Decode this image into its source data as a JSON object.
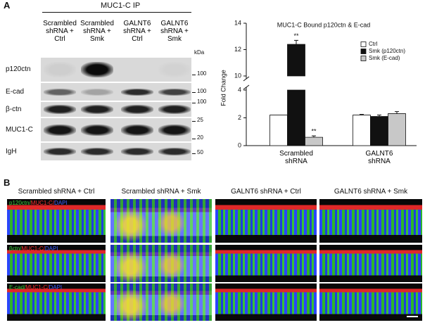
{
  "panel_a": {
    "label": "A",
    "ip_title": "MUC1-C IP",
    "lanes": [
      "Scrambled shRNA + Ctrl",
      "Scrambled shRNA + Smk",
      "GALNT6 shRNA + Ctrl",
      "GALNT6 shRNA + Smk"
    ],
    "kda_unit": "kDa",
    "blots": [
      {
        "name": "p120ctn",
        "markers": [
          100
        ]
      },
      {
        "name": "E-cad",
        "markers": [
          100
        ]
      },
      {
        "name": "β-ctn",
        "markers": [
          100
        ]
      },
      {
        "name": "MUC1-C",
        "markers": [
          25,
          20
        ]
      },
      {
        "name": "IgH",
        "markers": [
          50
        ]
      }
    ]
  },
  "chart_data": {
    "type": "bar",
    "title": "MUC1-C Bound p120ctn & E-cad",
    "ylabel": "Fold Change",
    "categories": [
      "Scrambled shRNA",
      "GALNT6 shRNA"
    ],
    "series": [
      {
        "name": "Ctrl",
        "color": "#ffffff",
        "values": [
          2.2,
          2.2
        ],
        "errors": [
          0,
          0.05
        ]
      },
      {
        "name": "Smk (p120ctn)",
        "color": "#111111",
        "values": [
          12.4,
          2.1
        ],
        "errors": [
          0.3,
          0.1
        ]
      },
      {
        "name": "Smk (E-cad)",
        "color": "#c8c8c8",
        "values": [
          0.6,
          2.3
        ],
        "errors": [
          0.1,
          0.15
        ]
      }
    ],
    "ylim": [
      0,
      14
    ],
    "yticks": [
      0,
      2,
      4,
      10,
      12,
      14
    ],
    "axis_break": [
      4,
      10
    ],
    "annotations": [
      "**",
      "**"
    ],
    "legend": "upper right"
  },
  "panel_b": {
    "label": "B",
    "columns": [
      "Scrambled shRNA + Ctrl",
      "Scrambled shRNA + Smk",
      "GALNT6 shRNA + Ctrl",
      "GALNT6 shRNA + Smk"
    ],
    "rows": [
      [
        "p120ctn/",
        "MUC1-C/",
        "DAPI"
      ],
      [
        "βctn/",
        "MUC1-C/",
        "DAPI"
      ],
      [
        "E-cad/",
        "MUC1-C/",
        "DAPI"
      ]
    ]
  }
}
